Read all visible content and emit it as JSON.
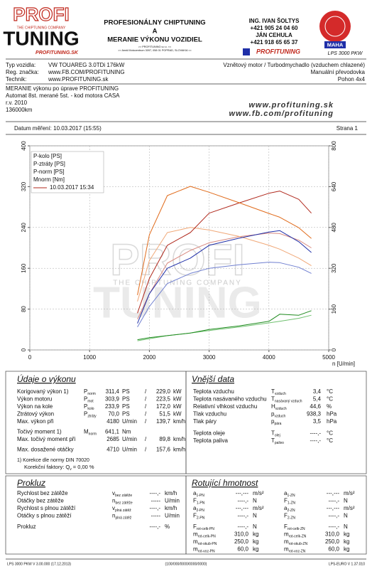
{
  "header": {
    "logo_top": "PROFI",
    "logo_tagline": "THE CHIPTUNING COMPANY",
    "logo_bottom": "TUNING",
    "logo_small": "PROFITUNING.SK",
    "title_lines": [
      "PROFESIONÁLNY CHIPTUNING",
      "A",
      "MERANIE VÝKONU VOZIDIEL"
    ],
    "address_lines": [
      ">> PROFITUNING s.r.o. <<",
      ">> Areál Motocentrum 3097, 058 01 POPRAD, SLOVAKIA <<"
    ],
    "contact": [
      "ING. IVAN ŠOLTYS",
      "+421 905 24 04 60",
      "JÁN CEHULA",
      "+421 918 65 65 37"
    ],
    "brand": "PROFITUNING",
    "badge": "MAHA",
    "device": "LPS 3000 PKW"
  },
  "vehicle": {
    "rows": [
      [
        "Typ vozidla:",
        "VW TOUAREG 3.0TDi 176kW"
      ],
      [
        "Reg. značka:",
        "www.FB.COM/PROFITUNING"
      ],
      [
        "Technik:",
        "www.PROFITUNING.sk"
      ]
    ],
    "right": [
      "Vznětový motor / Turbodmychadlo (vzduchem chlazené)",
      "Manuální převodovka",
      "Pohon 4x4"
    ],
    "notes": [
      "MERANIE výkonu po úprave PROFITUNING",
      "Automat 8st. merané 5st. - kod motora  CASA",
      "r.v. 2010",
      "136000km"
    ],
    "web": [
      "www.profituning.sk",
      "www.fb.com/profituning"
    ],
    "date": "Datum měření: 10.03.2017 (15:55)",
    "page": "Strana 1"
  },
  "chart_data": {
    "type": "line",
    "x": [
      1800,
      2000,
      2300,
      2685,
      3000,
      3500,
      4000,
      4180,
      4500,
      4710
    ],
    "series": [
      {
        "name": "P-kolo [PS]",
        "color": "#1f2fa8",
        "axis": "y",
        "values": [
          52,
          110,
          160,
          180,
          205,
          219,
          231,
          233.9,
          212,
          191
        ]
      },
      {
        "name": "P-ztráty [PS]",
        "color": "#1e8a1e",
        "axis": "y",
        "values": [
          20,
          24,
          28,
          33,
          40,
          47,
          56,
          70,
          68,
          77
        ]
      },
      {
        "name": "P-norm [PS]",
        "color": "#b0281c",
        "axis": "y",
        "values": [
          72,
          140,
          205,
          230,
          268,
          288,
          307,
          311.4,
          295,
          268
        ]
      },
      {
        "name": "Mnorm [Nm]",
        "color": "#e06a1a",
        "axis": "y2",
        "values": [
          215,
          451,
          605,
          641.1,
          618,
          577,
          535,
          520,
          479,
          437
        ]
      },
      {
        "color": "#6f7fd0",
        "axis": "y",
        "values": [
          45,
          85,
          130,
          150,
          160,
          167,
          172,
          171,
          162,
          150
        ]
      },
      {
        "color": "#6fc06f",
        "axis": "y",
        "values": [
          18,
          22,
          28,
          33,
          38,
          45,
          53,
          56,
          62,
          68
        ]
      },
      {
        "color": "#d98a80",
        "axis": "y",
        "values": [
          60,
          110,
          170,
          195,
          210,
          222,
          229,
          228,
          215,
          200
        ]
      },
      {
        "color": "#f0a878",
        "axis": "y2",
        "values": [
          190,
          350,
          460,
          480,
          470,
          445,
          410,
          395,
          360,
          330
        ]
      }
    ],
    "legend_run": "10.03.2017 15:34",
    "x_label": "n [U/min]",
    "xlim": [
      0,
      5000
    ],
    "xticks": [
      0,
      1000,
      2000,
      3000,
      4000,
      5000
    ],
    "ylim": [
      0,
      400
    ],
    "yticks": [
      0,
      80,
      160,
      240,
      320,
      400
    ],
    "y2lim": [
      0,
      800
    ],
    "y2ticks": [
      0,
      160,
      320,
      480,
      640,
      800
    ],
    "grid": true,
    "legend": "upper left"
  },
  "performance": {
    "title": "Údaje o výkonu",
    "sep": "/",
    "rows": [
      {
        "label": "Korigovaný výkon 1)",
        "sym": "P",
        "sub": "norm",
        "value": "311,4",
        "unit": "PS",
        "value2": "229,0",
        "unit2": "kW",
        "color": "#c0281c"
      },
      {
        "label": "Výkon motoru",
        "sym": "P",
        "sub": "mot",
        "value": "303,9",
        "unit": "PS",
        "value2": "223,5",
        "unit2": "kW",
        "color": "#c0281c"
      },
      {
        "label": "Výkon na kole",
        "sym": "P",
        "sub": "kolo",
        "value": "233,9",
        "unit": "PS",
        "value2": "172,0",
        "unit2": "kW",
        "color": "#1f2fa8"
      },
      {
        "label": "Ztrátový výkon",
        "sym": "P",
        "sub": "ztráty",
        "value": "70,0",
        "unit": "PS",
        "value2": "51,5",
        "unit2": "kW",
        "color": "#1e8a1e"
      },
      {
        "label": "Max. výkon při",
        "value": "4180",
        "unit": "U/min",
        "value2": "139,7",
        "unit2": "km/h"
      },
      {
        "label": "Točivý moment 1)",
        "sym": "M",
        "sub": "norm",
        "value": "641,1",
        "unit": "Nm",
        "color": "#c0281c"
      },
      {
        "label": "Max. točivý moment při",
        "value": "2685",
        "unit": "U/min",
        "value2": "89,8",
        "unit2": "km/h"
      },
      {
        "label": "Max. dosažené otáčky",
        "value": "4710",
        "unit": "U/min",
        "value2": "157,6",
        "unit2": "km/h"
      }
    ],
    "note": "1) Korekce dle normy DIN 70020",
    "factor": [
      "Korekční faktory: Q",
      "v",
      " =  0,00 %"
    ]
  },
  "external": {
    "title": "Vnější data",
    "rows": [
      {
        "label": "Teplota vzduchu",
        "sym": "T",
        "sub": "vzduch",
        "value": "3,4",
        "unit": "°C"
      },
      {
        "label": "Teplota nasávaného vzduchu",
        "sym": "T",
        "sub": "nasávaný vzduch",
        "value": "5,4",
        "unit": "°C"
      },
      {
        "label": "Relativní vlhkost vzduchu",
        "sym": "H",
        "sub": "vzduch",
        "value": "44,6",
        "unit": "%"
      },
      {
        "label": "Tlak vzduchu",
        "sym": "p",
        "sub": "vzduch",
        "value": "938,3",
        "unit": "hPa"
      },
      {
        "label": "Tlak páry",
        "sym": "p",
        "sub": "pára",
        "value": "3,5",
        "unit": "hPa"
      },
      {
        "label": "Teplota oleje",
        "sym": "T",
        "sub": "olej",
        "value": "----,-",
        "unit": "°C"
      },
      {
        "label": "Teplota paliva",
        "sym": "T",
        "sub": "palivo",
        "value": "----,-",
        "unit": "°C"
      }
    ]
  },
  "slip": {
    "title": "Prokluz",
    "rows": [
      {
        "label": "Rychlost bez zátěže",
        "sym": "v",
        "sub": "bez zátěže",
        "value": "----,-",
        "unit": "km/h"
      },
      {
        "label": "Otáčky bez zátěže",
        "sym": "n",
        "sub": "bez zátěže",
        "value": "-----",
        "unit": "U/min"
      },
      {
        "label": "Rychlost s plnou zátěží",
        "sym": "v",
        "sub": "plná zátěž",
        "value": "----,-",
        "unit": "km/h"
      },
      {
        "label": "Otáčky s plnou zátěží",
        "sym": "n",
        "sub": "plná zátěž",
        "value": "-----",
        "unit": "U/min"
      },
      {
        "label": "Prokluz",
        "value": "----,-",
        "unit": "%"
      }
    ]
  },
  "rotating": {
    "title": "Rotující hmotnost",
    "rows": [
      [
        {
          "sym": "a",
          "sub": "1-PN",
          "value": "---,---",
          "unit": "m/s²"
        },
        {
          "sym": "a",
          "sub": "1-ZN",
          "value": "---,---",
          "unit": "m/s²"
        }
      ],
      [
        {
          "sym": "F",
          "sub": "1-PN",
          "value": "----,-",
          "unit": "N"
        },
        {
          "sym": "F",
          "sub": "1-ZN",
          "value": "----,-",
          "unit": "N"
        }
      ],
      [
        {
          "sym": "a",
          "sub": "2-PN",
          "value": "---,---",
          "unit": "m/s²"
        },
        {
          "sym": "a",
          "sub": "2-ZN",
          "value": "---,---",
          "unit": "m/s²"
        }
      ],
      [
        {
          "sym": "F",
          "sub": "2-PN",
          "value": "----,-",
          "unit": "N"
        },
        {
          "sym": "F",
          "sub": "2-ZN",
          "value": "----,-",
          "unit": "N"
        }
      ],
      [
        {
          "sym": "F",
          "sub": "rot-celk-PN",
          "value": "----,-",
          "unit": "N"
        },
        {
          "sym": "F",
          "sub": "rot-celk-ZN",
          "value": "----,-",
          "unit": "N"
        }
      ],
      [
        {
          "sym": "m",
          "sub": "rot-celk-PN",
          "value": "310,0",
          "unit": "kg"
        },
        {
          "sym": "m",
          "sub": "rot-celk-ZN",
          "value": "310,0",
          "unit": "kg"
        }
      ],
      [
        {
          "sym": "m",
          "sub": "rot-skub-PN",
          "value": "250,0",
          "unit": "kg"
        },
        {
          "sym": "m",
          "sub": "rot-skub-ZN",
          "value": "250,0",
          "unit": "kg"
        }
      ],
      [
        {
          "sym": "m",
          "sub": "rot-voz-PN",
          "value": "60,0",
          "unit": "kg"
        },
        {
          "sym": "m",
          "sub": "rot-voz-ZN",
          "value": "60,0",
          "unit": "kg"
        }
      ]
    ]
  },
  "footer": [
    "LPS 3000 PKW V 3.00.000 (17.12.2013)",
    "(100/000/0000/0000/0000)",
    "LPS-EURO V 1.37.010"
  ]
}
